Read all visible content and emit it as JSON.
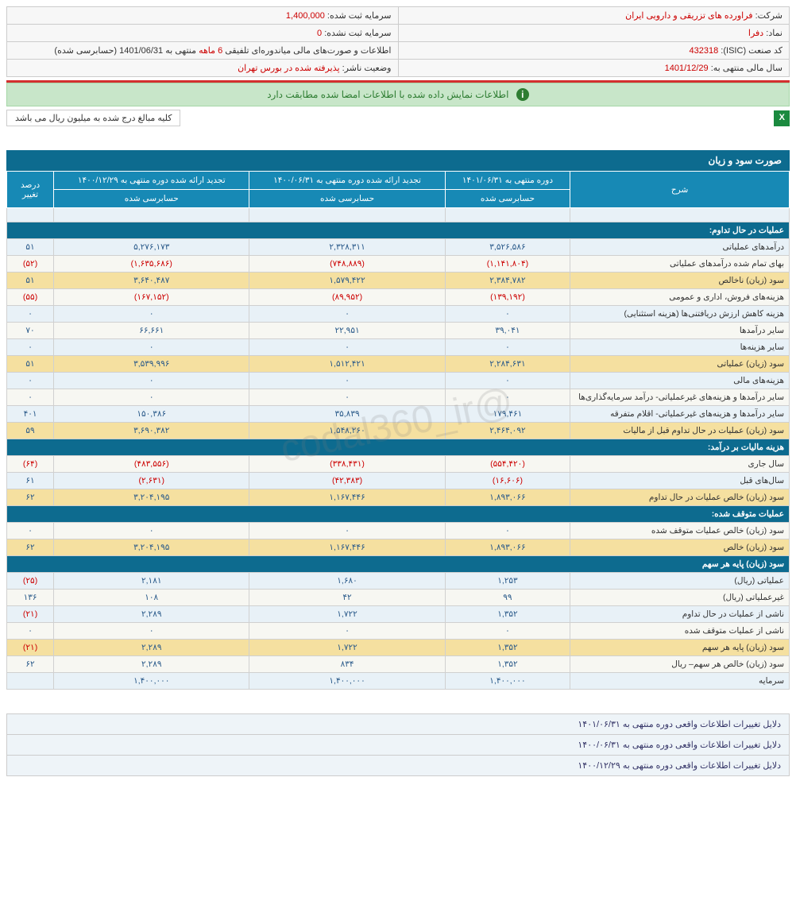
{
  "header": {
    "company_label": "شرکت:",
    "company_value": "فراورده های تزریقی و دارویی ایران",
    "capital_reg_label": "سرمایه ثبت شده:",
    "capital_reg_value": "1,400,000",
    "symbol_label": "نماد:",
    "symbol_value": "دفرا",
    "capital_unreg_label": "سرمایه ثبت نشده:",
    "capital_unreg_value": "0",
    "isic_label": "کد صنعت (ISIC):",
    "isic_value": "432318",
    "report_label": "اطلاعات و صورت‌های مالی میاندوره‌ای تلفیقی",
    "report_period": "6 ماهه",
    "report_end": "منتهی به 1401/06/31 (حسابرسی شده)",
    "fy_label": "سال مالی منتهی به:",
    "fy_value": "1401/12/29",
    "status_label": "وضعیت ناشر:",
    "status_value": "پذیرفته شده در بورس تهران"
  },
  "banner": "اطلاعات نمایش داده شده با اطلاعات امضا شده مطابقت دارد",
  "note": "کلیه مبالغ درج شده به میلیون ریال می باشد",
  "section_title": "صورت سود و زیان",
  "columns": {
    "desc": "شرح",
    "c1": "دوره منتهی به ۱۴۰۱/۰۶/۳۱",
    "c2": "تجدید ارائه شده دوره منتهی به ۱۴۰۰/۰۶/۳۱",
    "c3": "تجدید ارائه شده دوره منتهی به ۱۴۰۰/۱۲/۲۹",
    "pct": "درصد تغییر",
    "audited": "حسابرسی شده"
  },
  "subheads": {
    "s1": "عملیات در حال تداوم:",
    "s2": "هزینه مالیات بر درآمد:",
    "s3": "عملیات متوقف شده:",
    "s4": "سود (زیان) پایه هر سهم"
  },
  "rows": [
    {
      "k": "r0",
      "label": "درآمدهای عملیاتی",
      "v1": "۳,۵۲۶,۵۸۶",
      "v2": "۲,۳۲۸,۳۱۱",
      "v3": "۵,۲۷۶,۱۷۳",
      "pct": "۵۱",
      "style": "even"
    },
    {
      "k": "r1",
      "label": "بهای تمام شده درآمدهای عملیاتی",
      "v1": "(۱,۱۴۱,۸۰۴)",
      "v2": "(۷۴۸,۸۸۹)",
      "v3": "(۱,۶۳۵,۶۸۶)",
      "pct": "(۵۲)",
      "style": "odd",
      "neg": true
    },
    {
      "k": "r2",
      "label": "سود (زیان) ناخالص",
      "v1": "۲,۳۸۴,۷۸۲",
      "v2": "۱,۵۷۹,۴۲۲",
      "v3": "۳,۶۴۰,۴۸۷",
      "pct": "۵۱",
      "style": "yellow"
    },
    {
      "k": "r3",
      "label": "هزینه‌های فروش، اداری و عمومی",
      "v1": "(۱۳۹,۱۹۲)",
      "v2": "(۸۹,۹۵۲)",
      "v3": "(۱۶۷,۱۵۲)",
      "pct": "(۵۵)",
      "style": "odd",
      "neg": true
    },
    {
      "k": "r4",
      "label": "هزینه کاهش ارزش دریافتنی‌ها (هزینه استثنایی)",
      "v1": "۰",
      "v2": "۰",
      "v3": "۰",
      "pct": "۰",
      "style": "even"
    },
    {
      "k": "r5",
      "label": "سایر درآمدها",
      "v1": "۳۹,۰۴۱",
      "v2": "۲۲,۹۵۱",
      "v3": "۶۶,۶۶۱",
      "pct": "۷۰",
      "style": "odd"
    },
    {
      "k": "r6",
      "label": "سایر هزینه‌ها",
      "v1": "۰",
      "v2": "۰",
      "v3": "۰",
      "pct": "۰",
      "style": "even"
    },
    {
      "k": "r7",
      "label": "سود (زیان) عملیاتی",
      "v1": "۲,۲۸۴,۶۳۱",
      "v2": "۱,۵۱۲,۴۲۱",
      "v3": "۳,۵۳۹,۹۹۶",
      "pct": "۵۱",
      "style": "yellow"
    },
    {
      "k": "r8",
      "label": "هزینه‌های مالی",
      "v1": "۰",
      "v2": "۰",
      "v3": "۰",
      "pct": "۰",
      "style": "even"
    },
    {
      "k": "r9",
      "label": "سایر درآمدها و هزینه‌های غیرعملیاتی- درآمد سرمایه‌گذاری‌ها",
      "v1": "۰",
      "v2": "۰",
      "v3": "۰",
      "pct": "۰",
      "style": "odd"
    },
    {
      "k": "r10",
      "label": "سایر درآمدها و هزینه‌های غیرعملیاتی- اقلام متفرقه",
      "v1": "۱۷۹,۴۶۱",
      "v2": "۳۵,۸۳۹",
      "v3": "۱۵۰,۳۸۶",
      "pct": "۴۰۱",
      "style": "even"
    },
    {
      "k": "r11",
      "label": "سود (زیان) عملیات در حال تداوم قبل از مالیات",
      "v1": "۲,۴۶۴,۰۹۲",
      "v2": "۱,۵۴۸,۲۶۰",
      "v3": "۳,۶۹۰,۳۸۲",
      "pct": "۵۹",
      "style": "yellow"
    },
    {
      "k": "r12",
      "label": "سال جاری",
      "v1": "(۵۵۴,۴۲۰)",
      "v2": "(۳۳۸,۴۳۱)",
      "v3": "(۴۸۳,۵۵۶)",
      "pct": "(۶۴)",
      "style": "odd",
      "neg": true
    },
    {
      "k": "r13",
      "label": "سال‌های قبل",
      "v1": "(۱۶,۶۰۶)",
      "v2": "(۴۲,۳۸۳)",
      "v3": "(۲,۶۳۱)",
      "pct": "۶۱",
      "style": "even",
      "neg": true
    },
    {
      "k": "r14",
      "label": "سود (زیان) خالص عملیات در حال تداوم",
      "v1": "۱,۸۹۳,۰۶۶",
      "v2": "۱,۱۶۷,۴۴۶",
      "v3": "۳,۲۰۴,۱۹۵",
      "pct": "۶۲",
      "style": "yellow"
    },
    {
      "k": "r15",
      "label": "سود (زیان) خالص عملیات متوقف شده",
      "v1": "۰",
      "v2": "۰",
      "v3": "۰",
      "pct": "۰",
      "style": "odd"
    },
    {
      "k": "r16",
      "label": "سود (زیان) خالص",
      "v1": "۱,۸۹۳,۰۶۶",
      "v2": "۱,۱۶۷,۴۴۶",
      "v3": "۳,۲۰۴,۱۹۵",
      "pct": "۶۲",
      "style": "yellow"
    },
    {
      "k": "r17",
      "label": "عملیاتی (ریال)",
      "v1": "۱,۲۵۳",
      "v2": "۱,۶۸۰",
      "v3": "۲,۱۸۱",
      "pct": "(۲۵)",
      "style": "even",
      "pctneg": true
    },
    {
      "k": "r18",
      "label": "غیرعملیاتی (ریال)",
      "v1": "۹۹",
      "v2": "۴۲",
      "v3": "۱۰۸",
      "pct": "۱۳۶",
      "style": "odd"
    },
    {
      "k": "r19",
      "label": "ناشی از عملیات در حال تداوم",
      "v1": "۱,۳۵۲",
      "v2": "۱,۷۲۲",
      "v3": "۲,۲۸۹",
      "pct": "(۲۱)",
      "style": "even",
      "pctneg": true
    },
    {
      "k": "r20",
      "label": "ناشی از عملیات متوقف شده",
      "v1": "۰",
      "v2": "۰",
      "v3": "۰",
      "pct": "۰",
      "style": "odd"
    },
    {
      "k": "r21",
      "label": "سود (زیان) پایه هر سهم",
      "v1": "۱,۳۵۲",
      "v2": "۱,۷۲۲",
      "v3": "۲,۲۸۹",
      "pct": "(۲۱)",
      "style": "yellow",
      "pctneg": true
    },
    {
      "k": "r22",
      "label": "سود (زیان) خالص هر سهم– ریال",
      "v1": "۱,۳۵۲",
      "v2": "۸۳۴",
      "v3": "۲,۲۸۹",
      "pct": "۶۲",
      "style": "odd"
    },
    {
      "k": "r23",
      "label": "سرمایه",
      "v1": "۱,۴۰۰,۰۰۰",
      "v2": "۱,۴۰۰,۰۰۰",
      "v3": "۱,۴۰۰,۰۰۰",
      "pct": "",
      "style": "even"
    }
  ],
  "reasons": [
    "دلایل تغییرات اطلاعات واقعی دوره منتهی به ۱۴۰۱/۰۶/۳۱",
    "دلایل تغییرات اطلاعات واقعی دوره منتهی به ۱۴۰۰/۰۶/۳۱",
    "دلایل تغییرات اطلاعات واقعی دوره منتهی به ۱۴۰۰/۱۲/۲۹"
  ],
  "watermark": "@codal360_ir",
  "colors": {
    "header_bg": "#0d6b8f",
    "th_bg": "#1789b5",
    "yellow": "#f5e0a0",
    "even": "#e8f1f7",
    "odd": "#f7f7f2",
    "neg": "#c00",
    "banner_bg": "#c8e6c9"
  }
}
